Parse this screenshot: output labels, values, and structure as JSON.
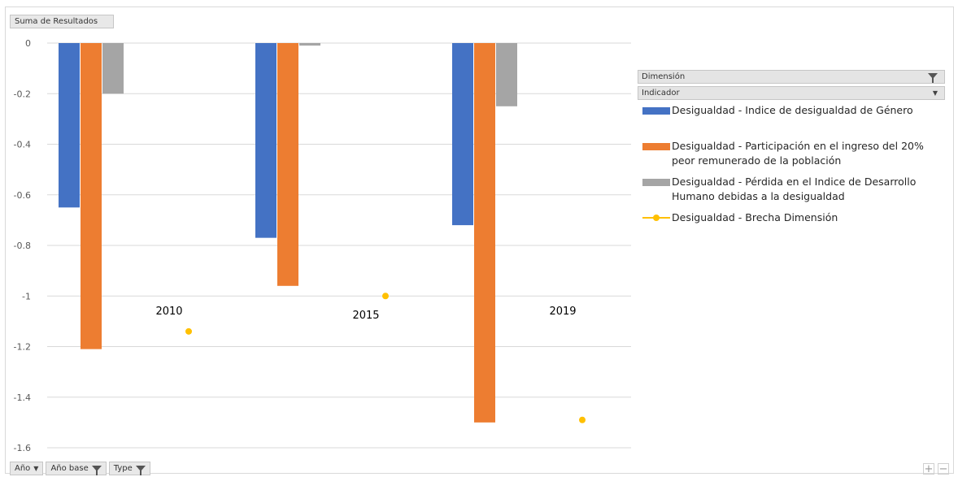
{
  "field_buttons": {
    "values": "Suma de Resultados",
    "rows": [
      {
        "label": "Año",
        "icon": "dropdown-arrow-icon"
      },
      {
        "label": "Año base",
        "icon": "filter-icon"
      },
      {
        "label": "Type",
        "icon": "filter-icon"
      }
    ]
  },
  "legend": {
    "header_dimension": "Dimensión",
    "header_indicator": "Indicador",
    "items": [
      {
        "label_lines": [
          "Desigualdad - Indice de desigualdad de Género"
        ],
        "color": "#4472C4",
        "kind": "bar"
      },
      {
        "label_lines": [
          "Desigualdad - Participación en el ingreso del 20%",
          "peor remunerado de la población"
        ],
        "color": "#ED7D31",
        "kind": "bar"
      },
      {
        "label_lines": [
          "Desigualdad - Pérdida en el Indice de Desarrollo",
          "Humano debidas a la desigualdad"
        ],
        "color": "#A5A5A5",
        "kind": "bar"
      },
      {
        "label_lines": [
          "Desigualdad - Brecha Dimensión"
        ],
        "color": "#FFC000",
        "kind": "line"
      }
    ]
  },
  "zoom": {
    "plus": "+",
    "minus": "−"
  },
  "chart_data": {
    "type": "bar",
    "categories": [
      "2010",
      "2015",
      "2019"
    ],
    "ylim": [
      -1.6,
      0
    ],
    "yticks": [
      0,
      -0.2,
      -0.4,
      -0.6,
      -0.8,
      -1,
      -1.2,
      -1.4,
      -1.6
    ],
    "ytick_labels": [
      "0",
      "-0.2",
      "-0.4",
      "-0.6",
      "-0.8",
      "-1",
      "-1.2",
      "-1.4",
      "-1.6"
    ],
    "grid": true,
    "legend_position": "right",
    "series": [
      {
        "name": "Desigualdad - Indice de desigualdad de Género",
        "kind": "bar",
        "color": "#4472C4",
        "values": [
          -0.65,
          -0.77,
          -0.72
        ]
      },
      {
        "name": "Desigualdad - Participación en el ingreso del 20% peor remunerado de la población",
        "kind": "bar",
        "color": "#ED7D31",
        "values": [
          -1.21,
          -0.96,
          -1.5
        ]
      },
      {
        "name": "Desigualdad - Pérdida en el Indice de Desarrollo Humano debidas a la desigualdad",
        "kind": "bar",
        "color": "#A5A5A5",
        "values": [
          -0.2,
          -0.01,
          -0.25
        ]
      },
      {
        "name": "Desigualdad - Brecha Dimensión",
        "kind": "point",
        "color": "#FFC000",
        "values": [
          -1.14,
          -1.0,
          -1.49
        ]
      }
    ]
  }
}
